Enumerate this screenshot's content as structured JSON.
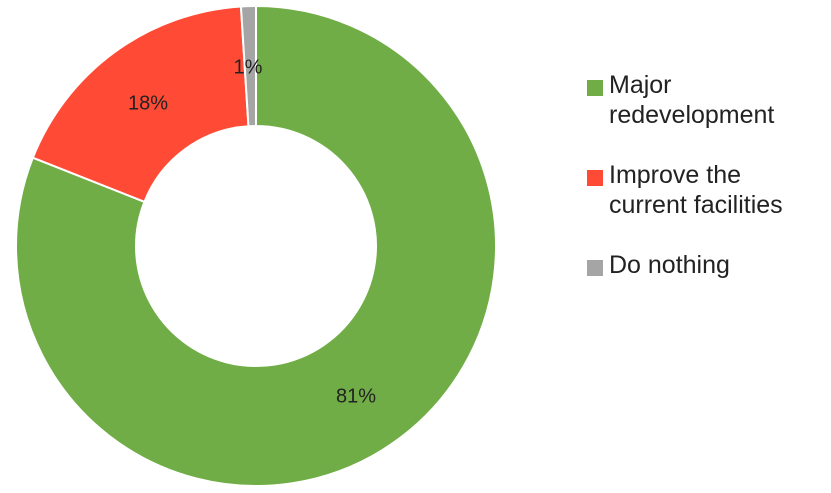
{
  "chart_data": {
    "type": "pie",
    "variant": "donut",
    "categories": [
      "Major redevelopment",
      "Improve the current facilities",
      "Do nothing"
    ],
    "values": [
      81,
      18,
      1
    ],
    "data_labels": [
      "81%",
      "18%",
      "1%"
    ],
    "colors": [
      "#70AD47",
      "#FF4B36",
      "#A5A5A5"
    ],
    "legend": {
      "placement": "right",
      "items": [
        {
          "label": "Major\nredevelopment",
          "color": "#70AD47"
        },
        {
          "label": "Improve the\ncurrent facilities",
          "color": "#FF4B36"
        },
        {
          "label": "Do nothing",
          "color": "#A5A5A5"
        }
      ]
    },
    "title": "",
    "start_angle_deg": 0,
    "direction": "clockwise"
  }
}
